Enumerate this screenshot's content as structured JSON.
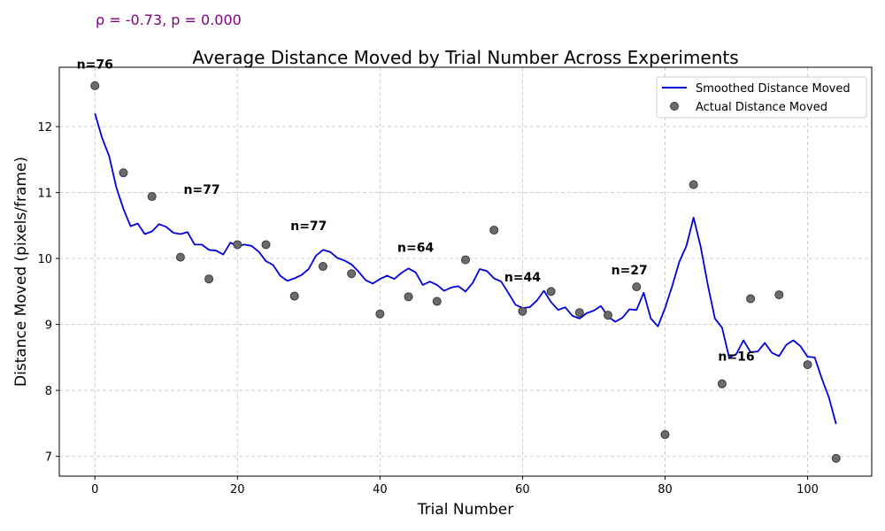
{
  "chart_data": {
    "type": "line",
    "title": "Average Distance Moved by Trial Number Across Experiments",
    "xlabel": "Trial Number",
    "ylabel": "Distance Moved (pixels/frame)",
    "xlim": [
      -5,
      109
    ],
    "ylim": [
      6.7,
      12.9
    ],
    "xticks": [
      0,
      20,
      40,
      60,
      80,
      100
    ],
    "yticks": [
      7,
      8,
      9,
      10,
      11,
      12
    ],
    "grid": true,
    "legend_position": "top-right",
    "stats_text": "ρ = -0.73, p = 0.000",
    "colors": {
      "line": "#0000dd",
      "points": "#6b6b6b",
      "stats": "#800080",
      "grid": "#c8c8c8"
    },
    "series": [
      {
        "name": "Smoothed Distance Moved",
        "kind": "line",
        "x": [
          0,
          1,
          2,
          3,
          4,
          5,
          6,
          7,
          8,
          9,
          10,
          11,
          12,
          13,
          14,
          15,
          16,
          17,
          18,
          19,
          20,
          21,
          22,
          23,
          24,
          25,
          26,
          27,
          28,
          29,
          30,
          31,
          32,
          33,
          34,
          35,
          36,
          37,
          38,
          39,
          40,
          41,
          42,
          43,
          44,
          45,
          46,
          47,
          48,
          49,
          50,
          51,
          52,
          53,
          54,
          55,
          56,
          57,
          58,
          59,
          60,
          61,
          62,
          63,
          64,
          65,
          66,
          67,
          68,
          69,
          70,
          71,
          72,
          73,
          74,
          75,
          76,
          77,
          78,
          79,
          80,
          81,
          82,
          83,
          84,
          85,
          86,
          87,
          88,
          89,
          90,
          91,
          92,
          93,
          94,
          95,
          96,
          97,
          98,
          99,
          100,
          101,
          102,
          103,
          104
        ],
        "y": [
          12.2,
          11.83,
          11.55,
          11.08,
          10.75,
          10.49,
          10.53,
          10.37,
          10.41,
          10.52,
          10.48,
          10.39,
          10.37,
          10.4,
          10.21,
          10.21,
          10.13,
          10.12,
          10.06,
          10.24,
          10.19,
          10.21,
          10.19,
          10.1,
          9.96,
          9.9,
          9.74,
          9.66,
          9.7,
          9.75,
          9.84,
          10.04,
          10.13,
          10.1,
          10.01,
          9.97,
          9.91,
          9.8,
          9.67,
          9.62,
          9.69,
          9.74,
          9.69,
          9.78,
          9.85,
          9.79,
          9.6,
          9.65,
          9.6,
          9.51,
          9.56,
          9.58,
          9.5,
          9.63,
          9.84,
          9.81,
          9.7,
          9.65,
          9.48,
          9.3,
          9.25,
          9.26,
          9.36,
          9.51,
          9.34,
          9.22,
          9.26,
          9.13,
          9.09,
          9.17,
          9.21,
          9.28,
          9.12,
          9.04,
          9.1,
          9.23,
          9.22,
          9.48,
          9.09,
          8.97,
          9.25,
          9.58,
          9.95,
          10.19,
          10.62,
          10.18,
          9.6,
          9.09,
          8.95,
          8.5,
          8.55,
          8.76,
          8.58,
          8.59,
          8.72,
          8.57,
          8.52,
          8.69,
          8.76,
          8.67,
          8.51,
          8.5,
          8.18,
          7.89,
          7.49
        ]
      },
      {
        "name": "Actual Distance Moved",
        "kind": "scatter",
        "x": [
          0,
          4,
          8,
          12,
          16,
          20,
          24,
          28,
          32,
          36,
          40,
          44,
          48,
          52,
          56,
          60,
          64,
          68,
          72,
          76,
          80,
          84,
          88,
          92,
          96,
          100,
          104
        ],
        "y": [
          12.62,
          11.3,
          10.94,
          10.02,
          9.69,
          10.21,
          10.21,
          9.43,
          9.88,
          9.77,
          9.16,
          9.42,
          9.35,
          9.98,
          10.43,
          9.2,
          9.5,
          9.18,
          9.14,
          9.57,
          7.33,
          11.12,
          8.1,
          9.39,
          9.45,
          8.39,
          6.97
        ]
      }
    ],
    "annotations": [
      {
        "text": "n=76",
        "x": 0,
        "y": 12.95
      },
      {
        "text": "n=77",
        "x": 15,
        "y": 11.05
      },
      {
        "text": "n=77",
        "x": 30,
        "y": 10.5
      },
      {
        "text": "n=64",
        "x": 45,
        "y": 10.17
      },
      {
        "text": "n=44",
        "x": 60,
        "y": 9.72
      },
      {
        "text": "n=27",
        "x": 75,
        "y": 9.83
      },
      {
        "text": "n=16",
        "x": 90,
        "y": 8.52
      }
    ]
  }
}
